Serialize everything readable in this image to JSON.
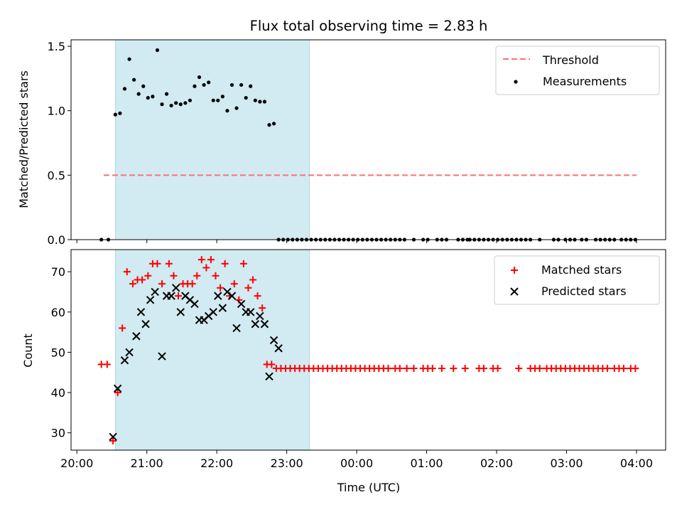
{
  "chart_data": [
    {
      "type": "scatter",
      "title": "Flux total observing time = 2.83 h",
      "xlabel": "",
      "ylabel": "Matched/Predicted stars",
      "ylim": [
        0,
        1.55
      ],
      "yticks": [
        "0.0",
        "0.5",
        "1.0",
        "1.5"
      ],
      "ytick_values": [
        0,
        0.5,
        1.0,
        1.5
      ],
      "x_ticks_time_minutes": [
        0,
        60,
        120,
        180,
        240,
        300,
        360,
        420,
        480
      ],
      "xlim_minutes": [
        -5,
        505
      ],
      "shaded_span_minutes": [
        33,
        199.5
      ],
      "shaded_color": "#add8e6",
      "legend": {
        "placement": "top-right",
        "entries": [
          "Threshold",
          "Measurements"
        ]
      },
      "threshold": {
        "name": "Threshold",
        "value": 0.5,
        "x_range_minutes": [
          23,
          480
        ],
        "color": "#ff7070"
      },
      "series": [
        {
          "name": "Measurements",
          "color": "#000000",
          "x_minutes": [
            21,
            27,
            33,
            37,
            41,
            45,
            49,
            53,
            57,
            61,
            65,
            69,
            73,
            77,
            81,
            85,
            89,
            93,
            97,
            101,
            105,
            109,
            113,
            117,
            121,
            125,
            129,
            133,
            137,
            141,
            145,
            149,
            153,
            157,
            161,
            165,
            169,
            173,
            177,
            181,
            185,
            189,
            193,
            197,
            201,
            205,
            209,
            213,
            217,
            221,
            225,
            229,
            233,
            237,
            241,
            245,
            249,
            253,
            257,
            261,
            265,
            269,
            273,
            277,
            281,
            289,
            297,
            301,
            309,
            313,
            317,
            327,
            331,
            335,
            337,
            341,
            345,
            349,
            353,
            357,
            361,
            365,
            369,
            373,
            377,
            381,
            385,
            389,
            397,
            409,
            413,
            419,
            423,
            427,
            433,
            437,
            445,
            449,
            453,
            457,
            461,
            467,
            471,
            475,
            479
          ],
          "y": [
            0,
            0,
            0.97,
            0.98,
            1.17,
            1.4,
            1.24,
            1.13,
            1.19,
            1.1,
            1.11,
            1.47,
            1.05,
            1.13,
            1.04,
            1.06,
            1.05,
            1.06,
            1.08,
            1.19,
            1.26,
            1.2,
            1.22,
            1.08,
            1.08,
            1.11,
            1.0,
            1.2,
            1.02,
            1.2,
            1.1,
            1.19,
            1.08,
            1.07,
            1.07,
            0.89,
            0.9,
            0,
            0,
            0,
            0,
            0,
            0,
            0,
            0,
            0,
            0,
            0,
            0,
            0,
            0,
            0,
            0,
            0,
            0,
            0,
            0,
            0,
            0,
            0,
            0,
            0,
            0,
            0,
            0,
            0,
            0,
            0,
            0,
            0,
            0,
            0,
            0,
            0,
            0,
            0,
            0,
            0,
            0,
            0,
            0,
            0,
            0,
            0,
            0,
            0,
            0,
            0,
            0,
            0,
            0,
            0,
            0,
            0,
            0,
            0,
            0,
            0,
            0,
            0,
            0,
            0,
            0,
            0,
            0
          ]
        }
      ]
    },
    {
      "type": "scatter",
      "title": "",
      "xlabel": "Time (UTC)",
      "ylabel": "Count",
      "ylim": [
        25.7,
        75.5
      ],
      "yticks": [
        "30",
        "40",
        "50",
        "60",
        "70"
      ],
      "ytick_values": [
        30,
        40,
        50,
        60,
        70
      ],
      "xticks": [
        "20:00",
        "21:00",
        "22:00",
        "23:00",
        "00:00",
        "01:00",
        "02:00",
        "03:00",
        "04:00"
      ],
      "x_ticks_time_minutes": [
        0,
        60,
        120,
        180,
        240,
        300,
        360,
        420,
        480
      ],
      "xlim_minutes": [
        -5,
        505
      ],
      "shaded_span_minutes": [
        33,
        199.5
      ],
      "legend": {
        "placement": "top-right",
        "entries": [
          "Matched stars",
          "Predicted stars"
        ]
      },
      "series": [
        {
          "name": "Matched stars",
          "marker": "+",
          "color": "#ff0000",
          "x_minutes": [
            21,
            26,
            31,
            35,
            39,
            43,
            48,
            52,
            56,
            61,
            65,
            69,
            73,
            79,
            83,
            87,
            91,
            95,
            99,
            103,
            107,
            111,
            115,
            119,
            123,
            127,
            131,
            135,
            139,
            143,
            147,
            151,
            155,
            159,
            163,
            167,
            171,
            175,
            179,
            183,
            187,
            191,
            195,
            199,
            203,
            207,
            211,
            215,
            219,
            223,
            227,
            231,
            235,
            239,
            243,
            247,
            251,
            255,
            259,
            263,
            267,
            273,
            277,
            283,
            289,
            297,
            301,
            305,
            313,
            323,
            333,
            345,
            349,
            357,
            361,
            379,
            389,
            393,
            397,
            403,
            407,
            411,
            415,
            419,
            423,
            427,
            431,
            435,
            439,
            443,
            447,
            451,
            455,
            461,
            465,
            469,
            475,
            479
          ],
          "y": [
            47,
            47,
            28,
            40,
            56,
            70,
            67,
            68,
            68,
            69,
            72,
            72,
            67,
            72,
            69,
            64,
            67,
            67,
            67,
            69,
            73,
            71,
            73,
            69,
            66,
            72,
            64,
            67,
            63,
            72,
            66,
            68,
            64,
            61,
            47,
            47,
            46,
            46,
            46,
            46,
            46,
            46,
            46,
            46,
            46,
            46,
            46,
            46,
            46,
            46,
            46,
            46,
            46,
            46,
            46,
            46,
            46,
            46,
            46,
            46,
            46,
            46,
            46,
            46,
            46,
            46,
            46,
            46,
            46,
            46,
            46,
            46,
            46,
            46,
            46,
            46,
            46,
            46,
            46,
            46,
            46,
            46,
            46,
            46,
            46,
            46,
            46,
            46,
            46,
            46,
            46,
            46,
            46,
            46,
            46,
            46,
            46,
            46
          ]
        },
        {
          "name": "Predicted stars",
          "marker": "x",
          "color": "#000000",
          "x_minutes": [
            31,
            35,
            41,
            45,
            51,
            55,
            59,
            63,
            67,
            73,
            77,
            81,
            85,
            89,
            93,
            97,
            101,
            105,
            109,
            113,
            117,
            121,
            125,
            129,
            133,
            137,
            141,
            145,
            149,
            153,
            157,
            161,
            165,
            169,
            173
          ],
          "y": [
            29,
            41,
            48,
            50,
            54,
            60,
            57,
            63,
            65,
            49,
            64,
            64,
            66,
            60,
            64,
            63,
            62,
            58,
            58,
            59,
            60,
            64,
            61,
            65,
            64,
            56,
            62,
            60,
            60,
            57,
            59,
            57,
            44,
            53,
            51
          ]
        }
      ]
    }
  ]
}
